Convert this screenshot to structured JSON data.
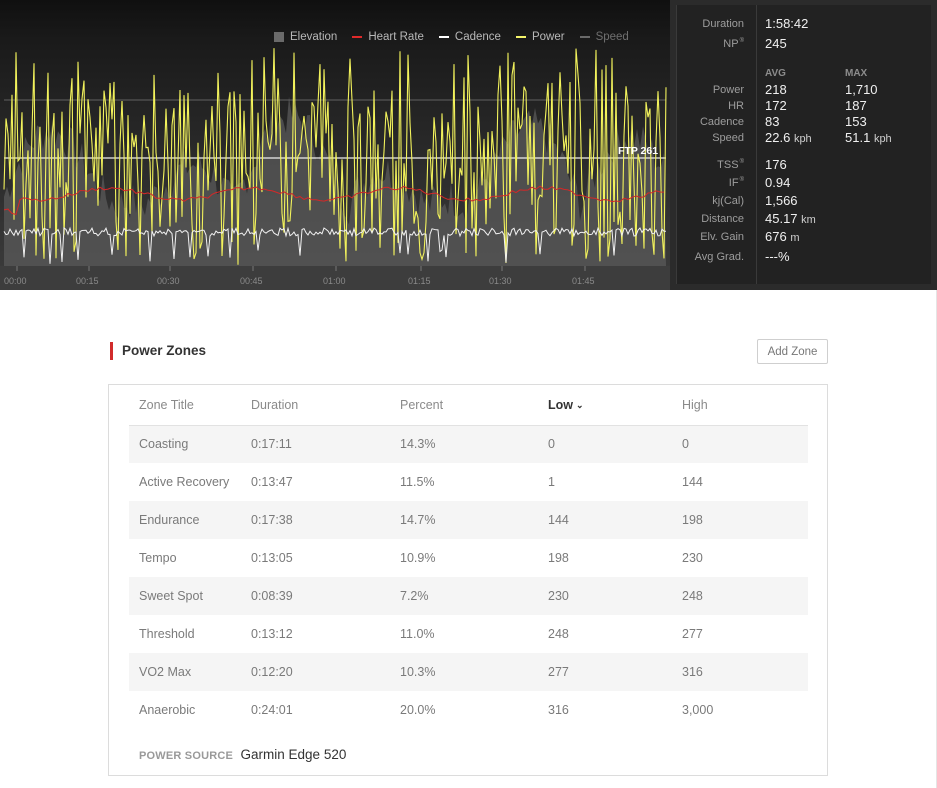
{
  "legend": {
    "items": [
      {
        "label": "Elevation",
        "color": "#6a6a6a",
        "kind": "box"
      },
      {
        "label": "Heart Rate",
        "color": "#e02a2a",
        "kind": "line"
      },
      {
        "label": "Cadence",
        "color": "#ffffff",
        "kind": "line"
      },
      {
        "label": "Power",
        "color": "#f4f46a",
        "kind": "line"
      },
      {
        "label": "Speed",
        "color": "#6a6a6a",
        "kind": "line",
        "muted": true
      }
    ]
  },
  "chart": {
    "ftp_label": "FTP 261",
    "x_ticks": [
      "00:00",
      "00:15",
      "00:30",
      "00:45",
      "01:00",
      "01:15",
      "01:30",
      "01:45"
    ],
    "colors": {
      "power": "#f2f25c",
      "hr": "#d42828",
      "cadence": "#f2f2f2",
      "elevation": "#5a5a5a",
      "ftp": "#eeeeee"
    }
  },
  "stats": {
    "duration_label": "Duration",
    "duration": "1:58:42",
    "np_label": "NP",
    "np": "245",
    "avg_header": "AVG",
    "max_header": "MAX",
    "rows": [
      {
        "label": "Power",
        "avg": "218",
        "max": "1,710",
        "unit": ""
      },
      {
        "label": "HR",
        "avg": "172",
        "max": "187",
        "unit": ""
      },
      {
        "label": "Cadence",
        "avg": "83",
        "max": "153",
        "unit": ""
      },
      {
        "label": "Speed",
        "avg": "22.6",
        "max": "51.1",
        "unit": "kph"
      }
    ],
    "tss_label": "TSS",
    "tss": "176",
    "if_label": "IF",
    "if": "0.94",
    "kj_label": "kj(Cal)",
    "kj": "1,566",
    "distance_label": "Distance",
    "distance": "45.17",
    "distance_unit": "km",
    "elv_label": "Elv. Gain",
    "elv": "676",
    "elv_unit": "m",
    "grad_label": "Avg Grad.",
    "grad": "---%",
    "trademark": "®"
  },
  "zones": {
    "title": "Power Zones",
    "add_label": "Add Zone",
    "headers": [
      "Zone Title",
      "Duration",
      "Percent",
      "Low",
      "High"
    ],
    "sort_caret": "⌄",
    "rows": [
      [
        "Coasting",
        "0:17:11",
        "14.3%",
        "0",
        "0"
      ],
      [
        "Active Recovery",
        "0:13:47",
        "11.5%",
        "1",
        "144"
      ],
      [
        "Endurance",
        "0:17:38",
        "14.7%",
        "144",
        "198"
      ],
      [
        "Tempo",
        "0:13:05",
        "10.9%",
        "198",
        "230"
      ],
      [
        "Sweet Spot",
        "0:08:39",
        "7.2%",
        "230",
        "248"
      ],
      [
        "Threshold",
        "0:13:12",
        "11.0%",
        "248",
        "277"
      ],
      [
        "VO2 Max",
        "0:12:20",
        "10.3%",
        "277",
        "316"
      ],
      [
        "Anaerobic",
        "0:24:01",
        "20.0%",
        "316",
        "3,000"
      ]
    ],
    "source_label": "POWER SOURCE",
    "source_value": "Garmin Edge 520"
  }
}
